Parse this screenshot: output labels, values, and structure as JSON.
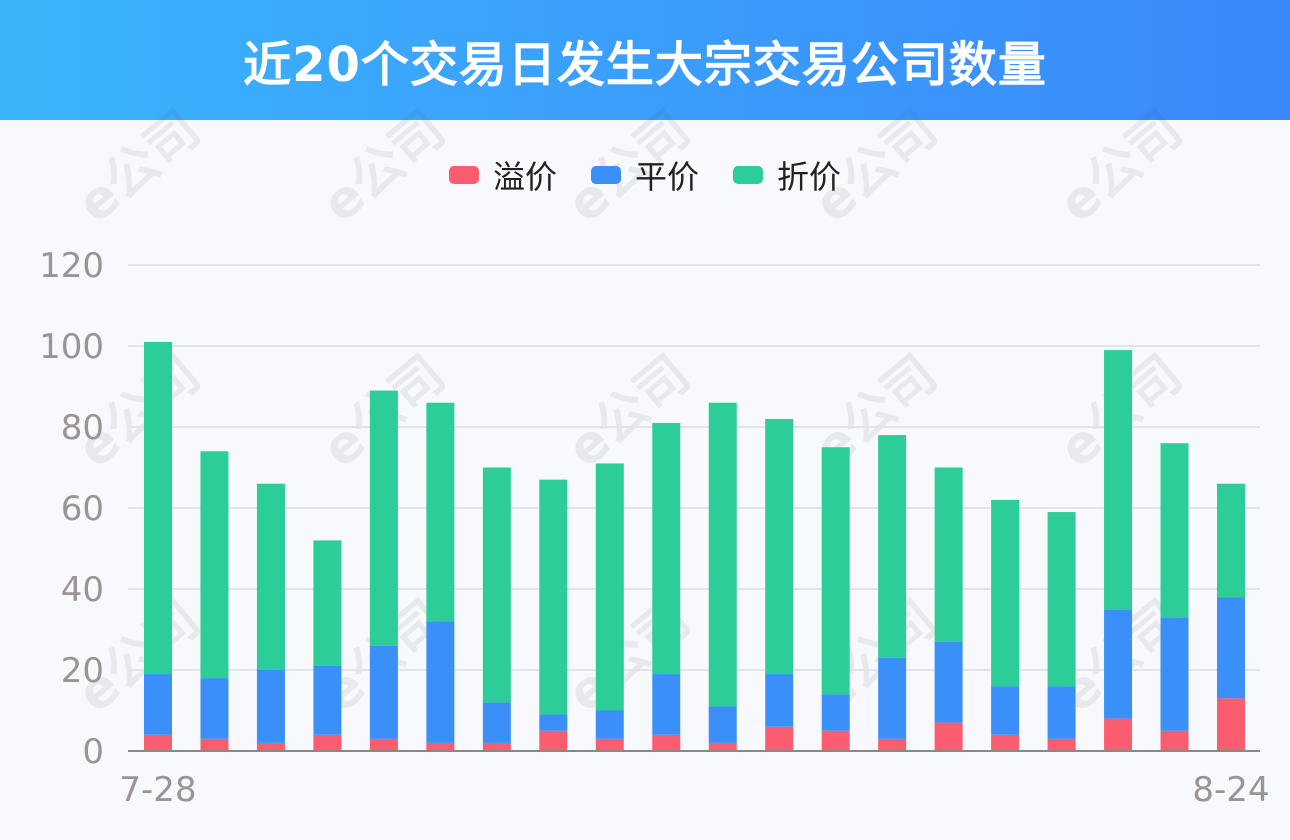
{
  "header": {
    "title": "近20个交易日发生大宗交易公司数量"
  },
  "colors": {
    "header_start": "#3bb4fb",
    "header_end": "#3a88fb",
    "premium": "#fa5c70",
    "par": "#3a8ff8",
    "discount": "#2ccd98",
    "axis_text": "#9a9494",
    "grid": "#e1e2ea"
  },
  "watermark": {
    "text": "e公司",
    "icon": "e-company-logo-watermark"
  },
  "chart_data": {
    "type": "bar",
    "stacked": true,
    "title": "近20个交易日发生大宗交易公司数量",
    "x_first_label": "7-28",
    "x_last_label": "8-24",
    "ylim": [
      0,
      120
    ],
    "y_ticks": [
      0,
      20,
      40,
      60,
      80,
      100,
      120
    ],
    "grid": true,
    "legend_position": "top-center",
    "series": [
      {
        "name": "溢价",
        "values": [
          4,
          3,
          2,
          4,
          3,
          2,
          2,
          5,
          3,
          4,
          2,
          6,
          5,
          3,
          7,
          4,
          3,
          8,
          5,
          13
        ]
      },
      {
        "name": "平价",
        "values": [
          15,
          15,
          18,
          17,
          23,
          30,
          10,
          4,
          7,
          15,
          9,
          13,
          9,
          20,
          20,
          12,
          13,
          27,
          28,
          25
        ]
      },
      {
        "name": "折价",
        "values": [
          82,
          56,
          46,
          31,
          63,
          54,
          58,
          58,
          61,
          62,
          75,
          63,
          61,
          55,
          43,
          46,
          43,
          64,
          43,
          28
        ]
      }
    ]
  }
}
